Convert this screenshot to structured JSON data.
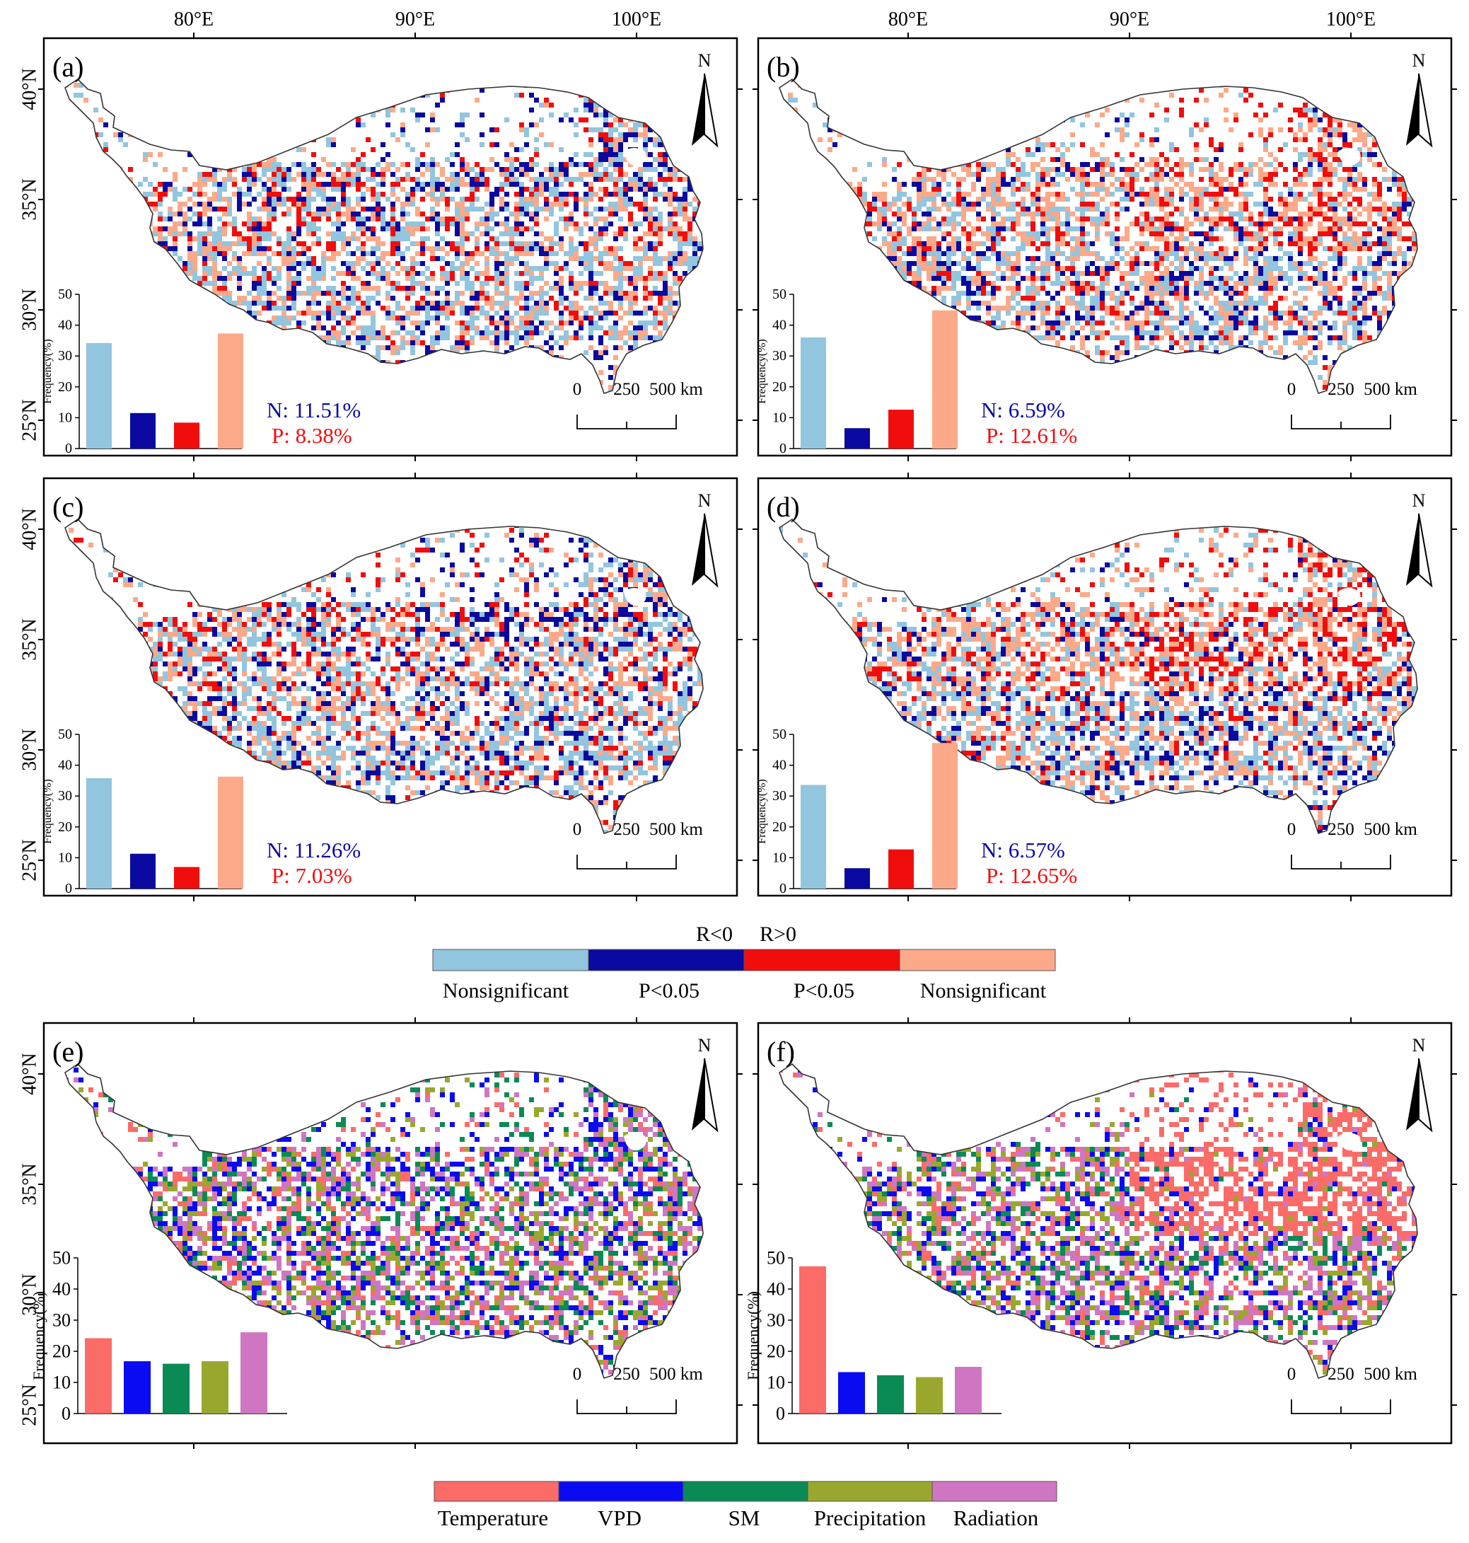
{
  "axes": {
    "lon_ticks": [
      "80°E",
      "90°E",
      "100°E"
    ],
    "lat_ticks": [
      "40°N",
      "35°N",
      "30°N",
      "25°N"
    ]
  },
  "north_label": "N",
  "scale_bar": {
    "labels": [
      "0",
      "250",
      "500 km"
    ]
  },
  "hist_ylabel": "Frequency(%)",
  "hist_yticks": [
    "0",
    "10",
    "20",
    "30",
    "40",
    "50"
  ],
  "colors": {
    "neg_nonsig": "#92c5de",
    "neg_sig": "#0a0aa0",
    "pos_sig": "#f20d0d",
    "pos_nonsig": "#fca98a",
    "temperature": "#fb6b68",
    "vpd": "#0b0bf2",
    "sm": "#0a8a55",
    "precipitation": "#9aa72e",
    "radiation": "#cf76c2",
    "nonsig_gray": "#c4c4c4"
  },
  "panels": [
    {
      "label": "(a)",
      "n_text": "N: 11.51%",
      "p_text": "P: 8.38%",
      "kind": "corr",
      "hist": [
        34.2,
        11.5,
        8.4,
        37.3
      ],
      "map_scheme": "a"
    },
    {
      "label": "(b)",
      "n_text": "N: 6.59%",
      "p_text": "P: 12.61%",
      "kind": "corr",
      "hist": [
        36.0,
        6.6,
        12.6,
        44.8
      ],
      "map_scheme": "b"
    },
    {
      "label": "(c)",
      "n_text": "N: 11.26%",
      "p_text": "P: 7.03%",
      "kind": "corr",
      "hist": [
        35.8,
        11.3,
        7.0,
        36.3
      ],
      "map_scheme": "a"
    },
    {
      "label": "(d)",
      "n_text": "N: 6.57%",
      "p_text": "P: 12.65%",
      "kind": "corr",
      "hist": [
        33.6,
        6.6,
        12.7,
        47.2
      ],
      "map_scheme": "b"
    },
    {
      "label": "(e)",
      "kind": "driver",
      "hist": [
        24.2,
        16.8,
        16.0,
        16.8,
        26.1
      ],
      "map_scheme": "e"
    },
    {
      "label": "(f)",
      "kind": "driver",
      "hist": [
        47.3,
        13.3,
        12.3,
        11.7,
        15.0
      ],
      "map_scheme": "f"
    }
  ],
  "legend1": {
    "top_labels": [
      "R<0",
      "R>0"
    ],
    "bottom_labels": [
      "Nonsignificant",
      "P<0.05",
      "P<0.05",
      "Nonsignificant"
    ]
  },
  "legend2": {
    "labels": [
      "Temperature",
      "VPD",
      "SM",
      "Precipitation",
      "Radiation"
    ]
  }
}
